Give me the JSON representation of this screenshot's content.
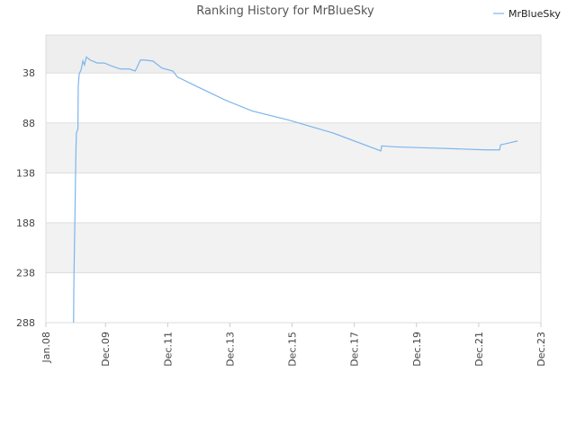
{
  "chart_data": {
    "type": "line",
    "title": "Ranking History for MrBlueSky",
    "x": [
      2008.89,
      2008.9,
      2008.93,
      2008.96,
      2008.98,
      2009.03,
      2009.04,
      2009.07,
      2009.13,
      2009.19,
      2009.24,
      2009.3,
      2009.42,
      2009.65,
      2009.88,
      2010.11,
      2010.4,
      2010.69,
      2010.87,
      2010.92,
      2011.04,
      2011.15,
      2011.44,
      2011.73,
      2012.08,
      2012.23,
      2012.89,
      2013.76,
      2014.63,
      2015.79,
      2017.23,
      2018.77,
      2018.8,
      2019.26,
      2020.27,
      2021.29,
      2022.15,
      2022.59,
      2022.62,
      2023.17
    ],
    "series": [
      {
        "name": "MrBlueSky",
        "color": "#7cb5ec",
        "values": [
          288,
          247,
          190,
          125,
          98,
          94,
          51,
          39,
          35,
          26,
          30,
          22,
          25,
          28,
          28,
          31,
          34,
          34,
          36,
          33,
          25,
          25,
          26,
          33,
          36,
          42,
          52,
          65,
          76,
          85,
          98,
          116,
          111,
          112,
          113,
          114,
          115,
          115,
          110,
          106
        ]
      }
    ],
    "xlim": [
      2008.0,
      2023.917
    ],
    "xticks": [
      {
        "value": 2008.0,
        "label": "Jan.08"
      },
      {
        "value": 2009.917,
        "label": "Dec.09"
      },
      {
        "value": 2011.917,
        "label": "Dec.11"
      },
      {
        "value": 2013.917,
        "label": "Dec.13"
      },
      {
        "value": 2015.917,
        "label": "Dec.15"
      },
      {
        "value": 2017.917,
        "label": "Dec.17"
      },
      {
        "value": 2019.917,
        "label": "Dec.19"
      },
      {
        "value": 2021.917,
        "label": "Dec.21"
      },
      {
        "value": 2023.917,
        "label": "Dec.23"
      }
    ],
    "ylim": [
      288,
      0
    ],
    "yticks": [
      38,
      88,
      138,
      188,
      238,
      288
    ],
    "grid": true,
    "legend": "top-right"
  }
}
